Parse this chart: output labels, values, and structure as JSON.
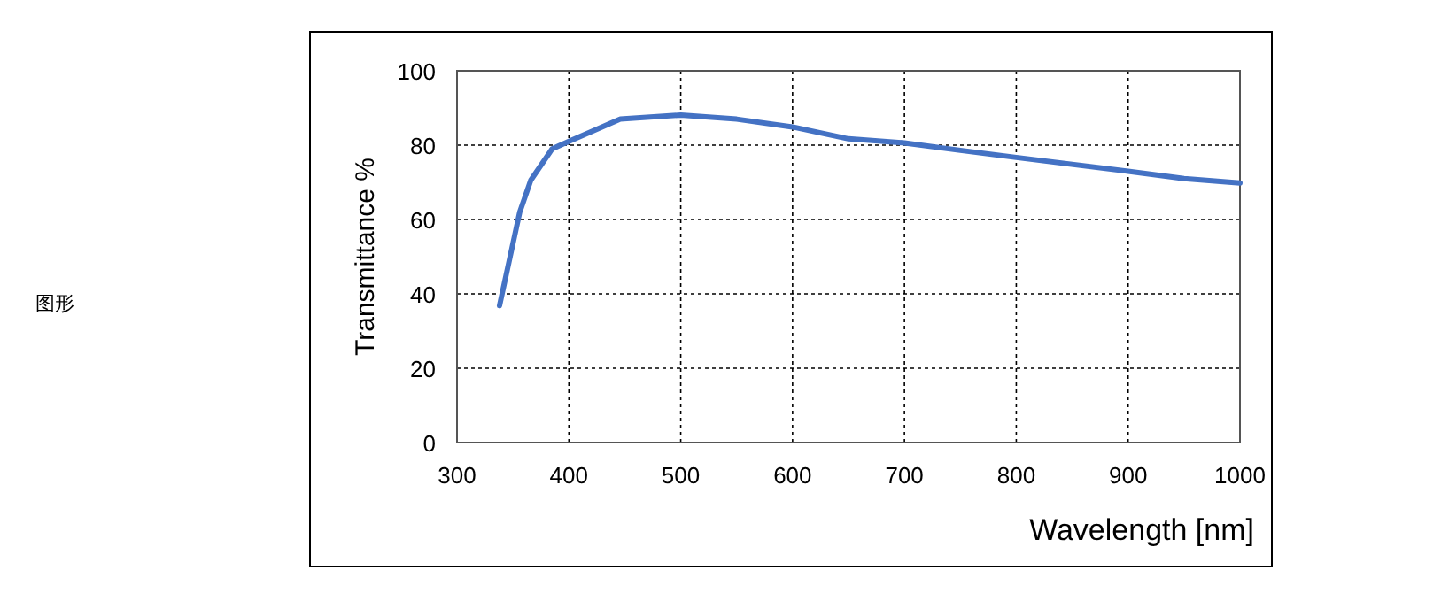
{
  "chart_data": {
    "type": "line",
    "xlabel": "Wavelength [nm]",
    "ylabel": "Transmittance %",
    "annotations": [
      "图形"
    ],
    "x": [
      338,
      356,
      366,
      385,
      400,
      446,
      500,
      550,
      600,
      650,
      700,
      750,
      800,
      900,
      950,
      1000
    ],
    "series": [
      {
        "color": "#4472c4",
        "values": [
          36.8,
          61.9,
          70.6,
          79,
          81,
          87,
          88.1,
          87,
          84.9,
          81.7,
          80.6,
          78.6,
          76.7,
          73,
          71,
          69.8
        ]
      }
    ],
    "xlim": [
      300,
      1000
    ],
    "xticks": [
      300,
      400,
      500,
      600,
      700,
      800,
      900,
      1000
    ],
    "ylim": [
      0,
      100
    ],
    "yticks": [
      0,
      20,
      40,
      60,
      80,
      100
    ],
    "grid": true,
    "marker": "none",
    "line_style": "solid"
  }
}
